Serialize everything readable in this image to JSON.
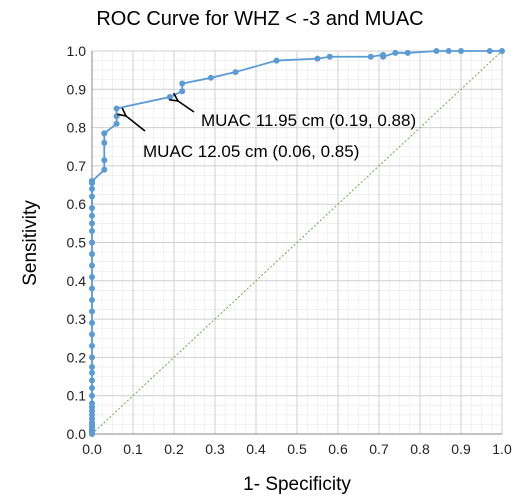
{
  "chart_data": {
    "type": "line",
    "title": "ROC Curve for WHZ < -3 and MUAC",
    "xlabel": "1- Specificity",
    "ylabel": "Sensitivity",
    "xlim": [
      0,
      1
    ],
    "ylim": [
      0,
      1
    ],
    "x_ticks": [
      "0.0",
      "0.1",
      "0.2",
      "0.3",
      "0.4",
      "0.5",
      "0.6",
      "0.7",
      "0.8",
      "0.9",
      "1.0"
    ],
    "y_ticks": [
      "0.0",
      "0.1",
      "0.2",
      "0.3",
      "0.4",
      "0.5",
      "0.6",
      "0.7",
      "0.8",
      "0.9",
      "1.0"
    ],
    "grid": true,
    "minor_grid": true,
    "colors": {
      "series": "#5b9bd5",
      "reference": "#70ad47",
      "grid_major": "#d0d0d0",
      "grid_minor": "#ececec"
    },
    "series": [
      {
        "x": [
          0.0,
          0.0,
          0.0,
          0.0,
          0.0,
          0.0,
          0.0,
          0.0,
          0.0,
          0.0,
          0.0,
          0.0,
          0.0,
          0.0,
          0.0,
          0.0,
          0.0,
          0.0,
          0.0,
          0.0,
          0.0,
          0.0,
          0.0,
          0.0,
          0.0,
          0.0,
          0.0,
          0.0,
          0.0,
          0.0,
          0.0,
          0.0,
          0.0,
          0.0,
          0.0,
          0.0,
          0.0,
          0.0,
          0.0,
          0.0,
          0.0,
          0.0,
          0.0,
          0.0,
          0.0,
          0.0,
          0.0,
          0.03,
          0.03,
          0.03,
          0.03,
          0.03,
          0.06,
          0.06,
          0.06,
          0.19,
          0.22,
          0.22,
          0.29,
          0.35,
          0.45,
          0.55,
          0.58,
          0.68,
          0.71,
          0.71,
          0.74,
          0.77,
          0.84,
          0.87,
          0.9,
          0.97,
          1.0
        ],
        "y": [
          0.0,
          0.005,
          0.01,
          0.015,
          0.02,
          0.025,
          0.03,
          0.04,
          0.05,
          0.06,
          0.07,
          0.08,
          0.1,
          0.12,
          0.14,
          0.16,
          0.175,
          0.2,
          0.23,
          0.26,
          0.29,
          0.32,
          0.35,
          0.38,
          0.41,
          0.44,
          0.47,
          0.5,
          0.53,
          0.55,
          0.57,
          0.59,
          0.62,
          0.64,
          0.655,
          0.66,
          0.66,
          0.66,
          0.66,
          0.66,
          0.66,
          0.66,
          0.66,
          0.66,
          0.66,
          0.66,
          0.66,
          0.69,
          0.715,
          0.76,
          0.785,
          0.785,
          0.81,
          0.83,
          0.85,
          0.88,
          0.895,
          0.915,
          0.93,
          0.945,
          0.975,
          0.98,
          0.985,
          0.985,
          0.99,
          0.985,
          0.995,
          0.995,
          1.0,
          1.0,
          1.0,
          1.0,
          1.0
        ]
      }
    ],
    "reference_line": {
      "x": [
        0,
        1
      ],
      "y": [
        0,
        1
      ]
    },
    "annotations": [
      {
        "text": "MUAC 11.95 cm (0.19, 0.88)",
        "x": 0.19,
        "y": 0.88
      },
      {
        "text": "MUAC 12.05 cm (0.06, 0.85)",
        "x": 0.06,
        "y": 0.85
      }
    ]
  }
}
